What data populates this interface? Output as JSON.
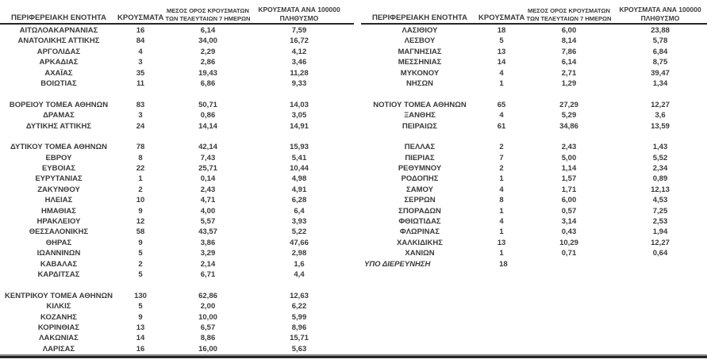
{
  "columns": {
    "region": "ΠΕΡΙΦΕΡΕΙΑΚΗ ΕΝΟΤΗΤΑ",
    "cases": "ΚΡΟΥΣΜΑΤΑ",
    "avg7_line1": "ΜΕΣΟΣ ΟΡΟΣ ΚΡΟΥΣΜΑΤΩΝ",
    "avg7_line2": "ΤΩΝ ΤΕΛΕΥΤΑΙΩΝ 7 ΗΜΕΡΩΝ",
    "per100k_line1": "ΚΡΟΥΣΜΑΤΑ ΑΝΑ 100000",
    "per100k_line2": "ΠΛΗΘΥΣΜΟ"
  },
  "colors": {
    "text": "#3a3a3a",
    "rule_dark": "#262626",
    "rule_light": "#8f8f8f",
    "background": "#ffffff"
  },
  "tables": [
    {
      "id": "left",
      "groups": [
        [
          [
            "ΑΙΤΩΛΟΑΚΑΡΝΑΝΙΑΣ",
            "16",
            "6,14",
            "7,59"
          ],
          [
            "ΑΝΑΤΟΛΙΚΗΣ ΑΤΤΙΚΗΣ",
            "84",
            "34,00",
            "16,72"
          ],
          [
            "ΑΡΓΟΛΙΔΑΣ",
            "4",
            "2,29",
            "4,12"
          ],
          [
            "ΑΡΚΑΔΙΑΣ",
            "3",
            "2,86",
            "3,46"
          ],
          [
            "ΑΧΑΪΑΣ",
            "35",
            "19,43",
            "11,28"
          ],
          [
            "ΒΟΙΩΤΙΑΣ",
            "11",
            "6,86",
            "9,33"
          ]
        ],
        [
          [
            "ΒΟΡΕΙΟΥ ΤΟΜΕΑ ΑΘΗΝΩΝ",
            "83",
            "50,71",
            "14,03"
          ],
          [
            "ΔΡΑΜΑΣ",
            "3",
            "0,86",
            "3,05"
          ],
          [
            "ΔΥΤΙΚΗΣ ΑΤΤΙΚΗΣ",
            "24",
            "14,14",
            "14,91"
          ]
        ],
        [
          [
            "ΔΥΤΙΚΟΥ ΤΟΜΕΑ ΑΘΗΝΩΝ",
            "78",
            "42,14",
            "15,93"
          ],
          [
            "ΕΒΡΟΥ",
            "8",
            "7,43",
            "5,41"
          ],
          [
            "ΕΥΒΟΙΑΣ",
            "22",
            "25,71",
            "10,44"
          ],
          [
            "ΕΥΡΥΤΑΝΙΑΣ",
            "1",
            "0,14",
            "4,98"
          ],
          [
            "ΖΑΚΥΝΘΟΥ",
            "2",
            "2,43",
            "4,91"
          ],
          [
            "ΗΛΕΙΑΣ",
            "10",
            "4,71",
            "6,28"
          ],
          [
            "ΗΜΑΘΙΑΣ",
            "9",
            "4,00",
            "6,4"
          ],
          [
            "ΗΡΑΚΛΕΙΟΥ",
            "12",
            "5,57",
            "3,93"
          ],
          [
            "ΘΕΣΣΑΛΟΝΙΚΗΣ",
            "58",
            "43,57",
            "5,22"
          ],
          [
            "ΘΗΡΑΣ",
            "9",
            "3,86",
            "47,66"
          ],
          [
            "ΙΩΑΝΝΙΝΩΝ",
            "5",
            "3,29",
            "2,98"
          ],
          [
            "ΚΑΒΑΛΑΣ",
            "2",
            "2,14",
            "1,6"
          ],
          [
            "ΚΑΡΔΙΤΣΑΣ",
            "5",
            "6,71",
            "4,4"
          ]
        ],
        [
          [
            "ΚΕΝΤΡΙΚΟΥ ΤΟΜΕΑ ΑΘΗΝΩΝ",
            "130",
            "62,86",
            "12,63"
          ],
          [
            "ΚΙΛΚΙΣ",
            "5",
            "2,00",
            "6,22"
          ],
          [
            "ΚΟΖΑΝΗΣ",
            "9",
            "10,00",
            "5,99"
          ],
          [
            "ΚΟΡΙΝΘΙΑΣ",
            "13",
            "6,57",
            "8,96"
          ],
          [
            "ΛΑΚΩΝΙΑΣ",
            "14",
            "8,86",
            "15,71"
          ],
          [
            "ΛΑΡΙΣΑΣ",
            "16",
            "16,00",
            "5,63"
          ]
        ]
      ]
    },
    {
      "id": "right",
      "groups": [
        [
          [
            "ΛΑΣΙΘΙΟΥ",
            "18",
            "6,00",
            "23,88"
          ],
          [
            "ΛΕΣΒΟΥ",
            "5",
            "8,14",
            "5,78"
          ],
          [
            "ΜΑΓΝΗΣΙΑΣ",
            "13",
            "7,86",
            "6,84"
          ],
          [
            "ΜΕΣΣΗΝΙΑΣ",
            "14",
            "6,14",
            "8,75"
          ],
          [
            "ΜΥΚΟΝΟΥ",
            "4",
            "2,71",
            "39,47"
          ],
          [
            "ΝΗΣΩΝ",
            "1",
            "1,29",
            "1,34"
          ]
        ],
        [
          [
            "ΝΟΤΙΟΥ ΤΟΜΕΑ ΑΘΗΝΩΝ",
            "65",
            "27,29",
            "12,27"
          ],
          [
            "ΞΑΝΘΗΣ",
            "4",
            "5,29",
            "3,6"
          ],
          [
            "ΠΕΙΡΑΙΩΣ",
            "61",
            "34,86",
            "13,59"
          ]
        ],
        [
          [
            "ΠΕΛΛΑΣ",
            "2",
            "2,43",
            "1,43"
          ],
          [
            "ΠΙΕΡΙΑΣ",
            "7",
            "5,00",
            "5,52"
          ],
          [
            "ΡΕΘΥΜΝΟΥ",
            "2",
            "1,14",
            "2,34"
          ],
          [
            "ΡΟΔΟΠΗΣ",
            "1",
            "1,57",
            "0,89"
          ],
          [
            "ΣΑΜΟΥ",
            "4",
            "1,71",
            "12,13"
          ],
          [
            "ΣΕΡΡΩΝ",
            "8",
            "6,00",
            "4,53"
          ],
          [
            "ΣΠΟΡΑΔΩΝ",
            "1",
            "0,57",
            "7,25"
          ],
          [
            "ΦΘΙΩΤΙΔΑΣ",
            "4",
            "3,14",
            "2,53"
          ],
          [
            "ΦΛΩΡΙΝΑΣ",
            "1",
            "0,43",
            "1,94"
          ],
          [
            "ΧΑΛΚΙΔΙΚΗΣ",
            "13",
            "10,29",
            "12,27"
          ],
          [
            "ΧΑΝΙΩΝ",
            "1",
            "0,71",
            "0,64"
          ],
          [
            "ΥΠΟ ΔΙΕΡΕΥΝΗΣΗ",
            "18",
            "",
            "",
            "under-investigation"
          ]
        ]
      ]
    }
  ]
}
